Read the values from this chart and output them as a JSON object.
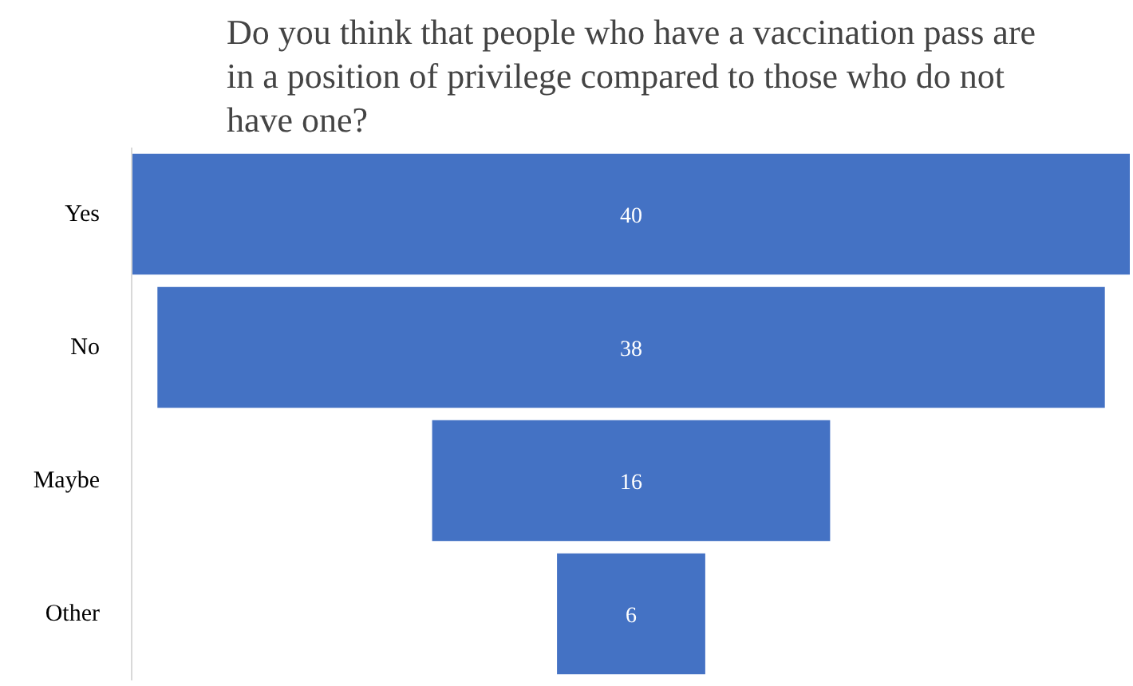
{
  "chart_data": {
    "type": "other",
    "title": "Do you think that people who have a vaccination pass are in a position of privilege compared to those who do not have one?",
    "categories": [
      "Yes",
      "No",
      "Maybe",
      "Other"
    ],
    "values": [
      40,
      38,
      16,
      6
    ],
    "color": "#4472c4",
    "data_labels": true
  }
}
